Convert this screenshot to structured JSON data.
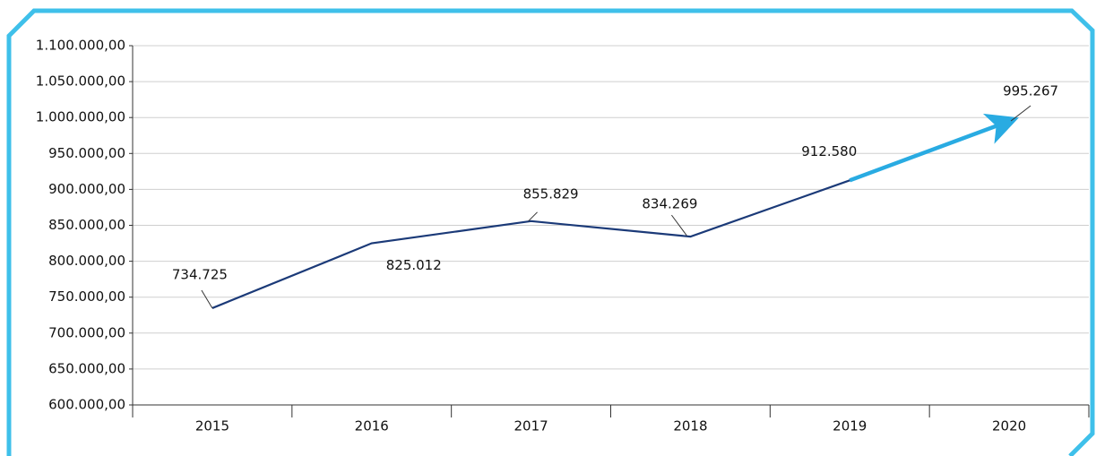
{
  "chart_data": {
    "type": "line",
    "categories": [
      "2015",
      "2016",
      "2017",
      "2018",
      "2019",
      "2020"
    ],
    "values": [
      734725,
      825012,
      855829,
      834269,
      912580,
      995267
    ],
    "value_labels": [
      "734.725",
      "825.012",
      "855.829",
      "834.269",
      "912.580",
      "995.267"
    ],
    "color": "#1b3a78",
    "highlight_color": "#29abe2",
    "ylim": [
      600000,
      1100000
    ],
    "yticks": [
      {
        "value": 600000,
        "label": "600.000,00"
      },
      {
        "value": 650000,
        "label": "650.000,00"
      },
      {
        "value": 700000,
        "label": "700.000,00"
      },
      {
        "value": 750000,
        "label": "750.000,00"
      },
      {
        "value": 800000,
        "label": "800.000,00"
      },
      {
        "value": 850000,
        "label": "850.000,00"
      },
      {
        "value": 900000,
        "label": "900.000,00"
      },
      {
        "value": 950000,
        "label": "950.000,00"
      },
      {
        "value": 1000000,
        "label": "1.000.000,00"
      },
      {
        "value": 1050000,
        "label": "1.050.000,00"
      },
      {
        "value": 1100000,
        "label": "1.100.000,00"
      }
    ],
    "grid": true
  }
}
